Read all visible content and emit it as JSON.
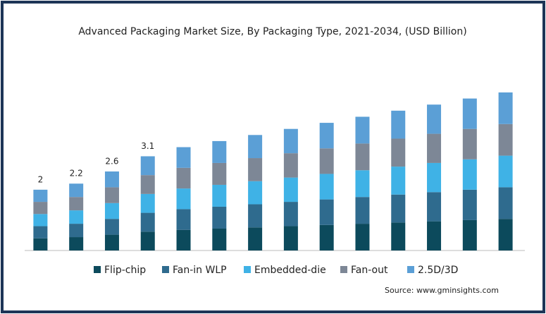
{
  "chart_data": {
    "type": "stacked_bar",
    "title": "Advanced Packaging Market Size, By Packaging Type, 2021-2034, (USD Billion)",
    "categories": [
      null,
      null,
      null,
      null,
      null,
      null,
      null,
      null,
      null,
      null,
      null,
      null,
      null,
      null
    ],
    "series": [
      {
        "name": "Flip-chip",
        "color": "#0c4a5c",
        "values": [
          0.4,
          0.44,
          0.52,
          0.62,
          0.68,
          0.72,
          0.76,
          0.8,
          0.84,
          0.88,
          0.92,
          0.96,
          1.0,
          1.04
        ]
      },
      {
        "name": "Fan-in WLP",
        "color": "#2f6b8e",
        "values": [
          0.4,
          0.44,
          0.52,
          0.62,
          0.68,
          0.72,
          0.76,
          0.8,
          0.84,
          0.88,
          0.92,
          0.96,
          1.0,
          1.04
        ]
      },
      {
        "name": "Embedded-die",
        "color": "#3fb2e6",
        "values": [
          0.4,
          0.44,
          0.52,
          0.62,
          0.68,
          0.72,
          0.76,
          0.8,
          0.84,
          0.88,
          0.92,
          0.96,
          1.0,
          1.04
        ]
      },
      {
        "name": "Fan-out",
        "color": "#7d8796",
        "values": [
          0.4,
          0.44,
          0.52,
          0.62,
          0.68,
          0.72,
          0.76,
          0.8,
          0.84,
          0.88,
          0.92,
          0.96,
          1.0,
          1.04
        ]
      },
      {
        "name": "2.5D/3D",
        "color": "#5b9fd6",
        "values": [
          0.4,
          0.44,
          0.52,
          0.62,
          0.68,
          0.72,
          0.76,
          0.8,
          0.84,
          0.88,
          0.92,
          0.96,
          1.0,
          1.04
        ]
      }
    ],
    "data_labels": [
      2,
      2.2,
      2.6,
      3.1
    ],
    "source": "Source: www.gminsights.com"
  }
}
